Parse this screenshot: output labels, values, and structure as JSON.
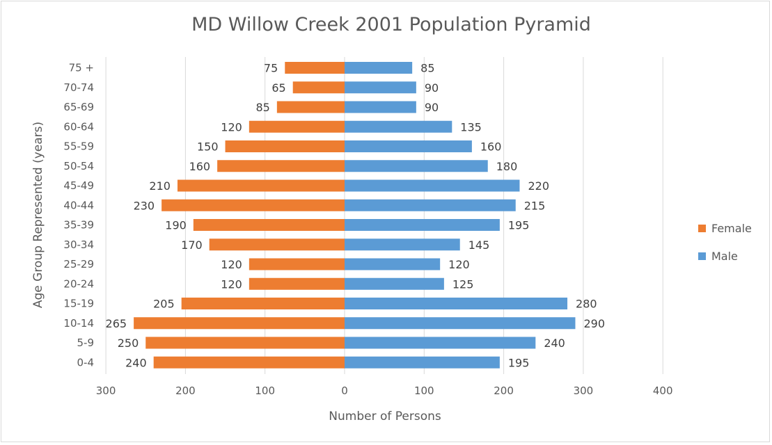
{
  "chart_data": {
    "type": "bar",
    "orientation": "horizontal",
    "title": "MD Willow Creek 2001 Population Pyramid",
    "xlabel": "Number of Persons",
    "ylabel": "Age Group Represented (years)",
    "categories": [
      "0-4",
      "5-9",
      "10-14",
      "15-19",
      "20-24",
      "25-29",
      "30-34",
      "35-39",
      "40-44",
      "45-49",
      "50-54",
      "55-59",
      "60-64",
      "65-69",
      "70-74",
      "75 +"
    ],
    "series": [
      {
        "name": "Female",
        "color": "#ed7d31",
        "values": [
          240,
          250,
          265,
          205,
          120,
          120,
          170,
          190,
          230,
          210,
          160,
          150,
          120,
          85,
          65,
          75
        ]
      },
      {
        "name": "Male",
        "color": "#5b9bd5",
        "values": [
          195,
          240,
          290,
          280,
          125,
          120,
          145,
          195,
          215,
          220,
          180,
          160,
          135,
          90,
          90,
          85
        ]
      }
    ],
    "xlim": [
      -300,
      400
    ],
    "x_ticks": [
      -300,
      -200,
      -100,
      0,
      100,
      200,
      300,
      400
    ],
    "x_tick_labels": [
      "300",
      "200",
      "100",
      "0",
      "100",
      "200",
      "300",
      "400"
    ],
    "grid": true,
    "legend_position": "right"
  }
}
